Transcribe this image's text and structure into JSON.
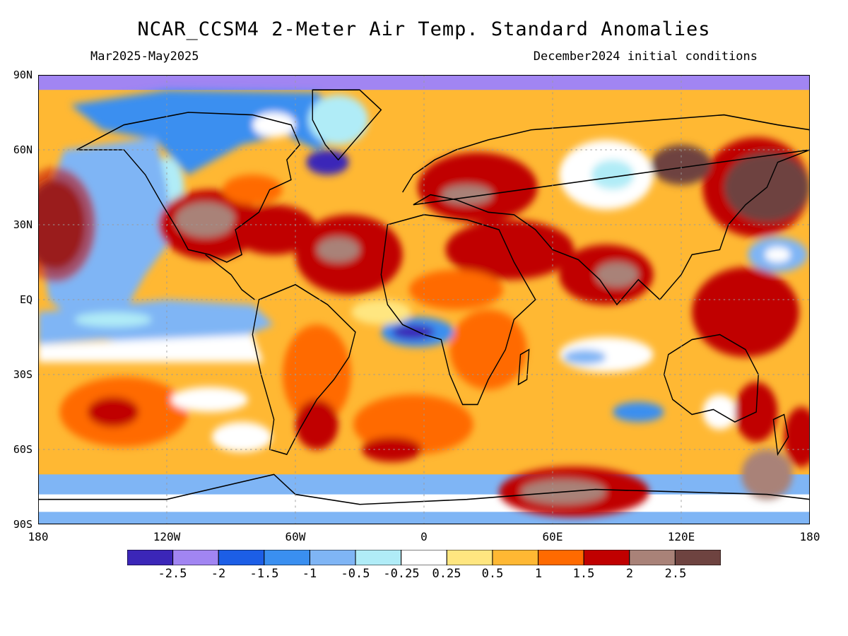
{
  "header": {
    "title": "NCAR_CCSM4 2-Meter Air Temp. Standard Anomalies",
    "period": "Mar2025-May2025",
    "init": "December2024 initial conditions"
  },
  "axes": {
    "lat_labels": [
      "90N",
      "60N",
      "30N",
      "EQ",
      "30S",
      "60S",
      "90S"
    ],
    "lon_labels": [
      "180",
      "120W",
      "60W",
      "0",
      "60E",
      "120E",
      "180"
    ]
  },
  "colorbar": {
    "labels": [
      "-2.5",
      "-2",
      "-1.5",
      "-1",
      "-0.5",
      "-0.25",
      "0.25",
      "0.5",
      "1",
      "1.5",
      "2",
      "2.5"
    ],
    "colors": [
      "#3b26b8",
      "#a185f2",
      "#1c5ee6",
      "#3a8ff0",
      "#7fb5f5",
      "#b0ecf7",
      "#ffffff",
      "#ffe680",
      "#ffb833",
      "#ff6a00",
      "#c00000",
      "#a98278",
      "#6e4340"
    ]
  }
}
